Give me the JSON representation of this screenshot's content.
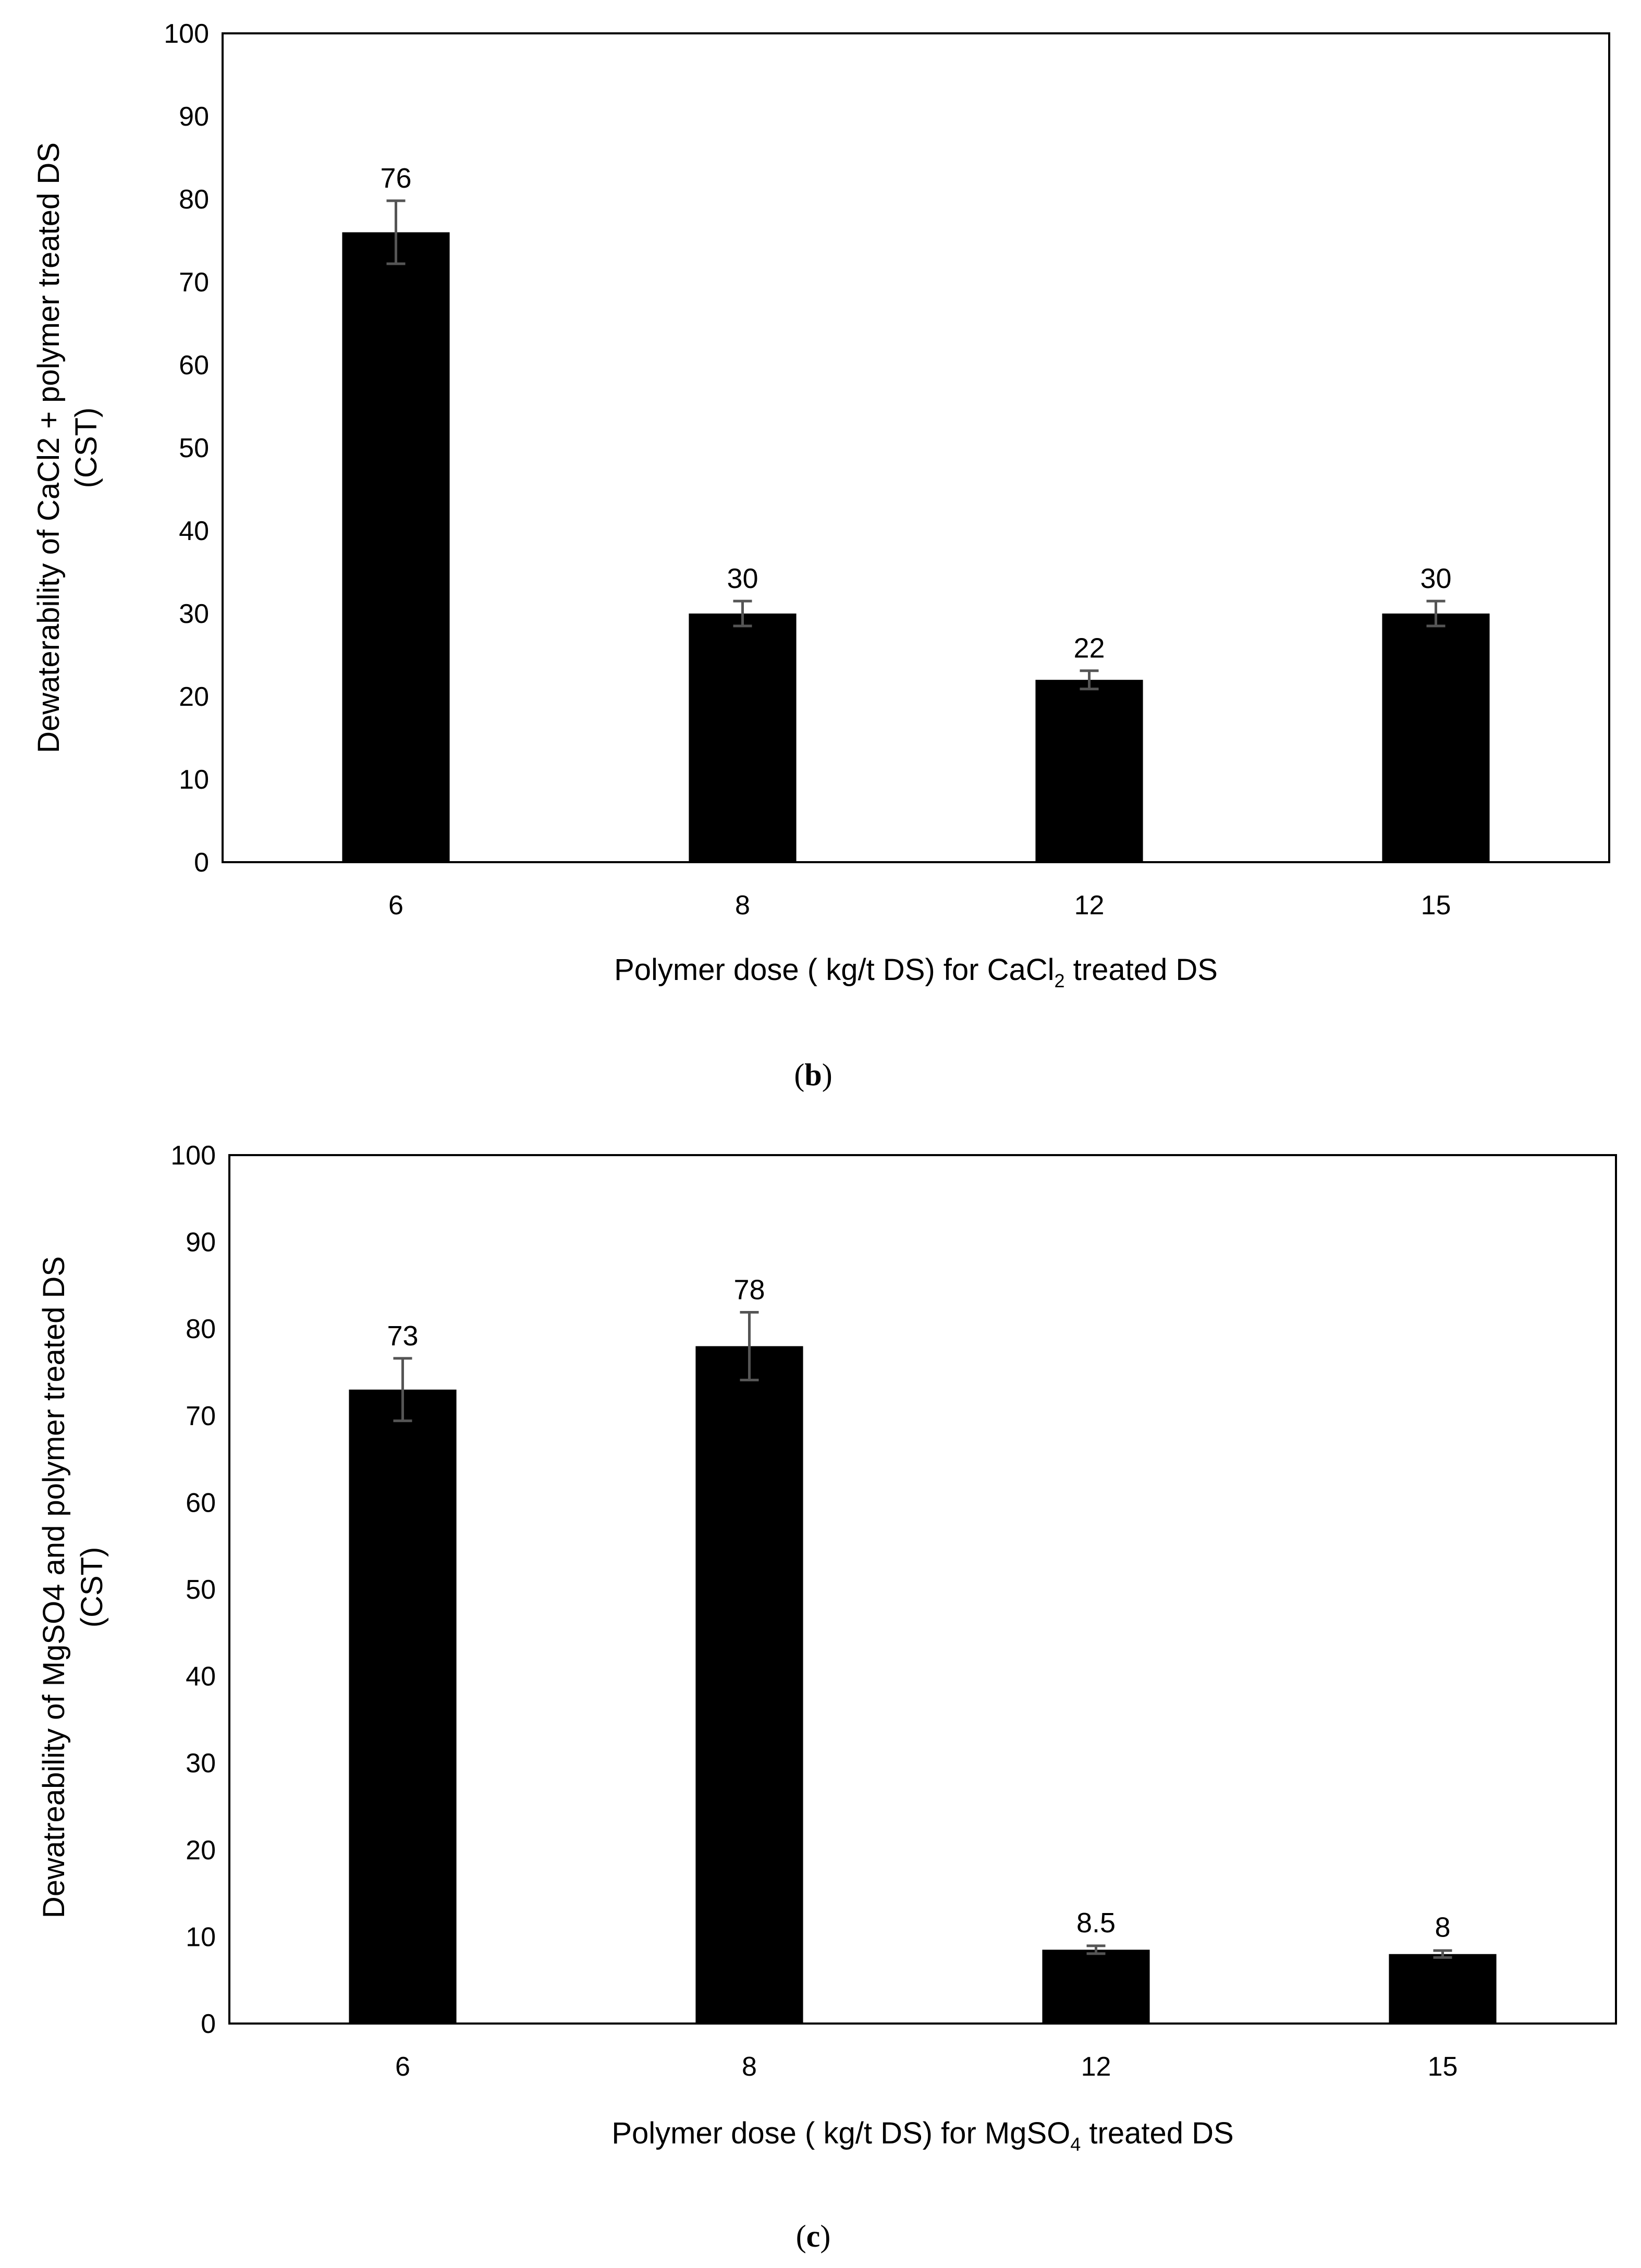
{
  "chart_data": [
    {
      "type": "bar",
      "panel": "b",
      "categories": [
        "6",
        "8",
        "12",
        "15"
      ],
      "values": [
        76,
        30,
        22,
        30
      ],
      "errors": [
        3.8,
        1.5,
        1.1,
        1.5
      ],
      "data_labels": [
        "76",
        "30",
        "22",
        "30"
      ],
      "xlabel": {
        "main": "Polymer dose ( kg/t DS) for CaCl",
        "sub": "2",
        "tail": " treated DS"
      },
      "ylabel_lines": [
        "Dewaterability of CaCl2 + polymer treated DS",
        "(CST)"
      ],
      "ylim": [
        0,
        100
      ],
      "yticks": [
        "0",
        "10",
        "20",
        "30",
        "40",
        "50",
        "60",
        "70",
        "80",
        "90",
        "100"
      ],
      "ytick_values": [
        0,
        10,
        20,
        30,
        40,
        50,
        60,
        70,
        80,
        90,
        100
      ],
      "bar_color": "#000000",
      "errorbar_color": "#555555",
      "caption": {
        "open": "(",
        "letter": "b",
        "close": ")"
      },
      "grid": false
    },
    {
      "type": "bar",
      "panel": "c",
      "categories": [
        "6",
        "8",
        "12",
        "15"
      ],
      "values": [
        73,
        78,
        8.5,
        8
      ],
      "errors": [
        3.6,
        3.9,
        0.45,
        0.4
      ],
      "data_labels": [
        "73",
        "78",
        "8.5",
        "8"
      ],
      "xlabel": {
        "main": "Polymer dose ( kg/t DS) for MgSO",
        "sub": "4",
        "tail": " treated DS"
      },
      "ylabel_lines": [
        "Dewatreability of MgSO4 and polymer treated DS",
        "(CST)"
      ],
      "ylim": [
        0,
        100
      ],
      "yticks": [
        "0",
        "10",
        "20",
        "30",
        "40",
        "50",
        "60",
        "70",
        "80",
        "90",
        "100"
      ],
      "ytick_values": [
        0,
        10,
        20,
        30,
        40,
        50,
        60,
        70,
        80,
        90,
        100
      ],
      "bar_color": "#000000",
      "errorbar_color": "#555555",
      "caption": {
        "open": "(",
        "letter": "c",
        "close": ")"
      },
      "grid": false
    }
  ]
}
